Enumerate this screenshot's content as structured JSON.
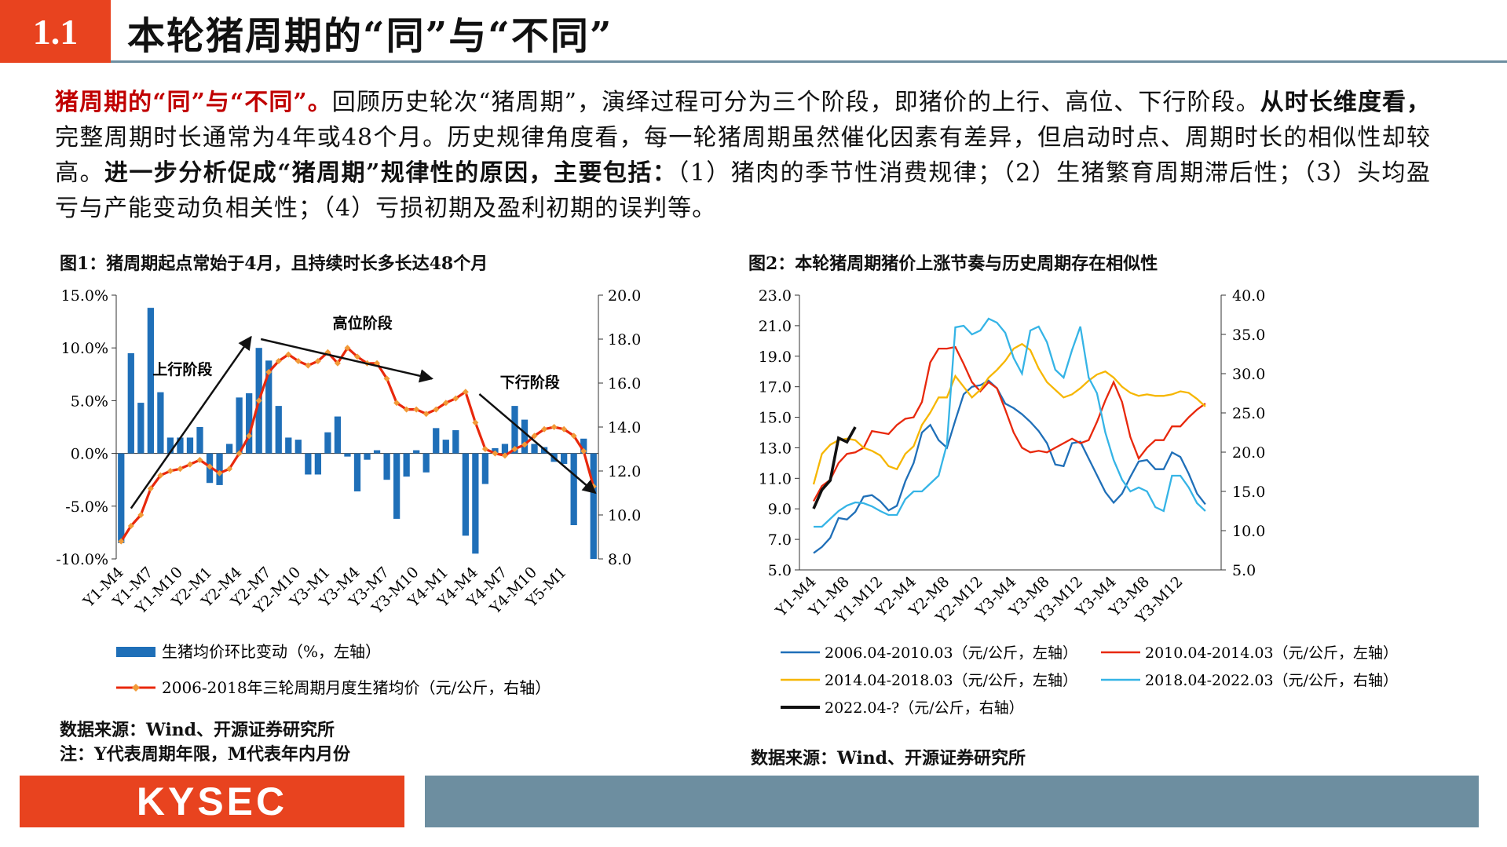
{
  "header": {
    "section_number": "1.1",
    "title": "本轮猪周期的“同”与“不同”"
  },
  "paragraph": {
    "p1_red": "猪周期的“同”与“不同”。",
    "p2": "回顾历史轮次“猪周期”，演绎过程可分为三个阶段，即猪价的上行、高位、下行阶段。",
    "p3_bold": "从时长维度看，",
    "p4": "完整周期时长通常为4年或48个月。历史规律角度看，每一轮猪周期虽然催化因素有差异，但启动时点、周期时长的相似性却较高。",
    "p5_bold": "进一步分析促成“猪周期”规律性的原因，主要包括：",
    "p6": "（1）猪肉的季节性消费规律；（2）生猪繁育周期滞后性；（3）头均盈亏与产能变动负相关性；（4）亏损初期及盈利初期的误判等。"
  },
  "figure1": {
    "title": "图1：猪周期起点常始于4月，且持续时长多长达48个月",
    "source": "数据来源：Wind、开源证券研究所",
    "note": "注：Y代表周期年限，M代表年内月份"
  },
  "figure2": {
    "title": "图2：本轮猪周期猪价上涨节奏与历史周期存在相似性",
    "source": "数据来源：Wind、开源证券研究所"
  },
  "footer": {
    "logo": "KYSEC"
  },
  "colors": {
    "brand_orange": "#e8431f",
    "slate": "#6d8ea0",
    "bar_blue": "#1f6fb8",
    "line_red": "#e8280c"
  },
  "chart_data": [
    {
      "type": "bar+line",
      "title": "图1：猪周期起点常始于4月，且持续时长多长达48个月",
      "y_left_ticks": [
        "15.0%",
        "10.0%",
        "5.0%",
        "0.0%",
        "-5.0%",
        "-10.0%"
      ],
      "y_right_ticks": [
        "20.0",
        "18.0",
        "16.0",
        "14.0",
        "12.0",
        "10.0",
        "8.0"
      ],
      "ylim_left": [
        -10,
        15
      ],
      "ylim_right": [
        8,
        20
      ],
      "x_ticks": [
        "Y1-M4",
        "Y1-M7",
        "Y1-M10",
        "Y2-M1",
        "Y2-M4",
        "Y2-M7",
        "Y2-M10",
        "Y3-M1",
        "Y3-M4",
        "Y3-M7",
        "Y3-M10",
        "Y4-M1",
        "Y4-M4",
        "Y4-M7",
        "Y4-M10",
        "Y5-M1"
      ],
      "annotations": [
        "上行阶段",
        "高位阶段",
        "下行阶段"
      ],
      "series": [
        {
          "name": "生猪均价环比变动（%，左轴）",
          "type": "bar",
          "values": [
            -8.5,
            9.5,
            4.8,
            13.8,
            5.8,
            1.5,
            1.5,
            1.5,
            2.5,
            -2.8,
            -3.0,
            0.9,
            5.3,
            5.7,
            10.0,
            8.8,
            4.5,
            1.5,
            1.3,
            -2.0,
            -2.0,
            2.0,
            3.5,
            -0.3,
            -3.6,
            -0.6,
            0.3,
            -2.5,
            -6.2,
            -2.2,
            0.3,
            -1.8,
            2.4,
            1.3,
            2.2,
            -7.8,
            -9.5,
            -2.9,
            0.5,
            0.9,
            4.5,
            3.2,
            0.9,
            0.6,
            -0.8,
            -1.0,
            -6.8,
            1.4,
            -10.0
          ]
        },
        {
          "name": "2006-2018年三轮周期月度生猪均价（元/公斤，右轴）",
          "type": "line",
          "values": [
            8.8,
            9.5,
            10.0,
            11.2,
            11.8,
            12.0,
            12.1,
            12.3,
            12.5,
            12.2,
            11.9,
            12.1,
            12.8,
            13.6,
            15.2,
            16.5,
            17.0,
            17.3,
            17.0,
            16.8,
            17.0,
            17.4,
            16.9,
            17.6,
            17.2,
            16.9,
            16.9,
            16.2,
            15.1,
            14.8,
            14.8,
            14.6,
            14.8,
            15.1,
            15.3,
            15.6,
            14.2,
            13.0,
            12.8,
            12.7,
            13.0,
            13.2,
            13.6,
            13.9,
            14.0,
            13.9,
            13.6,
            12.9,
            11.3
          ]
        }
      ]
    },
    {
      "type": "line",
      "title": "图2：本轮猪周期猪价上涨节奏与历史周期存在相似性",
      "y_left_ticks": [
        "23.0",
        "21.0",
        "19.0",
        "17.0",
        "15.0",
        "13.0",
        "11.0",
        "9.0",
        "7.0",
        "5.0"
      ],
      "y_right_ticks": [
        "40.0",
        "35.0",
        "30.0",
        "25.0",
        "20.0",
        "15.0",
        "10.0",
        "5.0"
      ],
      "ylim_left": [
        5,
        23
      ],
      "ylim_right": [
        5,
        40
      ],
      "x_ticks": [
        "Y1-M4",
        "Y1-M8",
        "Y1-M12",
        "Y2-M4",
        "Y2-M8",
        "Y2-M12",
        "Y3-M4",
        "Y3-M8",
        "Y3-M12",
        "Y3-M4",
        "Y3-M8",
        "Y3-M12"
      ],
      "series": [
        {
          "name": "2006.04-2010.03（元/公斤，左轴）",
          "axis": "left",
          "color": "#1f6fb8",
          "values": [
            6.1,
            6.5,
            7.1,
            8.4,
            8.3,
            8.8,
            9.8,
            9.9,
            9.5,
            8.9,
            9.2,
            10.8,
            12.0,
            14.0,
            14.5,
            13.5,
            13.0,
            14.8,
            16.5,
            17.0,
            17.1,
            17.4,
            16.9,
            15.9,
            15.6,
            15.2,
            14.7,
            14.1,
            13.3,
            11.9,
            11.8,
            13.3,
            13.4,
            12.3,
            11.2,
            10.1,
            9.4,
            10.0,
            11.1,
            12.1,
            12.2,
            11.6,
            11.6,
            12.7,
            12.4,
            11.3,
            10.0,
            9.3
          ]
        },
        {
          "name": "2010.04-2014.03（元/公斤，左轴）",
          "axis": "left",
          "color": "#e8280c",
          "values": [
            9.5,
            10.5,
            10.9,
            12.0,
            12.6,
            12.7,
            13.0,
            14.1,
            14.0,
            13.9,
            14.5,
            14.9,
            15.0,
            16.0,
            18.6,
            19.5,
            19.5,
            19.6,
            18.5,
            17.3,
            16.7,
            17.3,
            16.9,
            15.5,
            14.0,
            13.0,
            12.7,
            12.8,
            12.7,
            13.0,
            13.3,
            13.6,
            13.3,
            13.5,
            14.7,
            16.1,
            17.3,
            16.0,
            13.7,
            12.3,
            13.0,
            13.5,
            13.5,
            14.4,
            14.4,
            15.0,
            15.5,
            15.9
          ]
        },
        {
          "name": "2014.04-2018.03（元/公斤，左轴）",
          "axis": "left",
          "color": "#f6b600",
          "values": [
            10.6,
            12.6,
            13.2,
            13.5,
            13.6,
            13.5,
            13.0,
            12.8,
            12.5,
            11.8,
            11.6,
            12.6,
            13.1,
            14.5,
            15.3,
            16.3,
            16.3,
            17.7,
            17.0,
            16.3,
            16.8,
            17.6,
            18.1,
            18.7,
            19.5,
            19.8,
            19.4,
            18.2,
            17.3,
            16.8,
            16.3,
            16.5,
            16.9,
            17.4,
            17.8,
            18.0,
            17.6,
            17.0,
            16.6,
            16.4,
            16.5,
            16.4,
            16.4,
            16.5,
            16.7,
            16.6,
            16.2,
            15.7
          ]
        },
        {
          "name": "2018.04-2022.03（元/公斤，右轴）",
          "axis": "right",
          "color": "#35b4e6",
          "values": [
            10.5,
            10.5,
            11.5,
            12.5,
            13.2,
            13.6,
            13.5,
            13.1,
            12.5,
            12.0,
            12.0,
            14.0,
            15.0,
            15.0,
            16.0,
            17.0,
            21.0,
            35.9,
            36.1,
            35.0,
            35.5,
            37.0,
            36.5,
            35.2,
            32.0,
            30.0,
            35.5,
            36.0,
            34.0,
            30.5,
            29.5,
            33.0,
            36.0,
            29.5,
            27.5,
            22.5,
            19.0,
            16.5,
            15.0,
            15.5,
            15.0,
            13.0,
            12.5,
            17.0,
            17.0,
            15.5,
            13.5,
            12.5
          ]
        },
        {
          "name": "2022.04-?（元/公斤，右轴）",
          "axis": "right",
          "color": "#111111",
          "values": [
            12.8,
            15.2,
            16.4,
            21.8,
            21.3,
            23.2
          ]
        }
      ]
    }
  ]
}
